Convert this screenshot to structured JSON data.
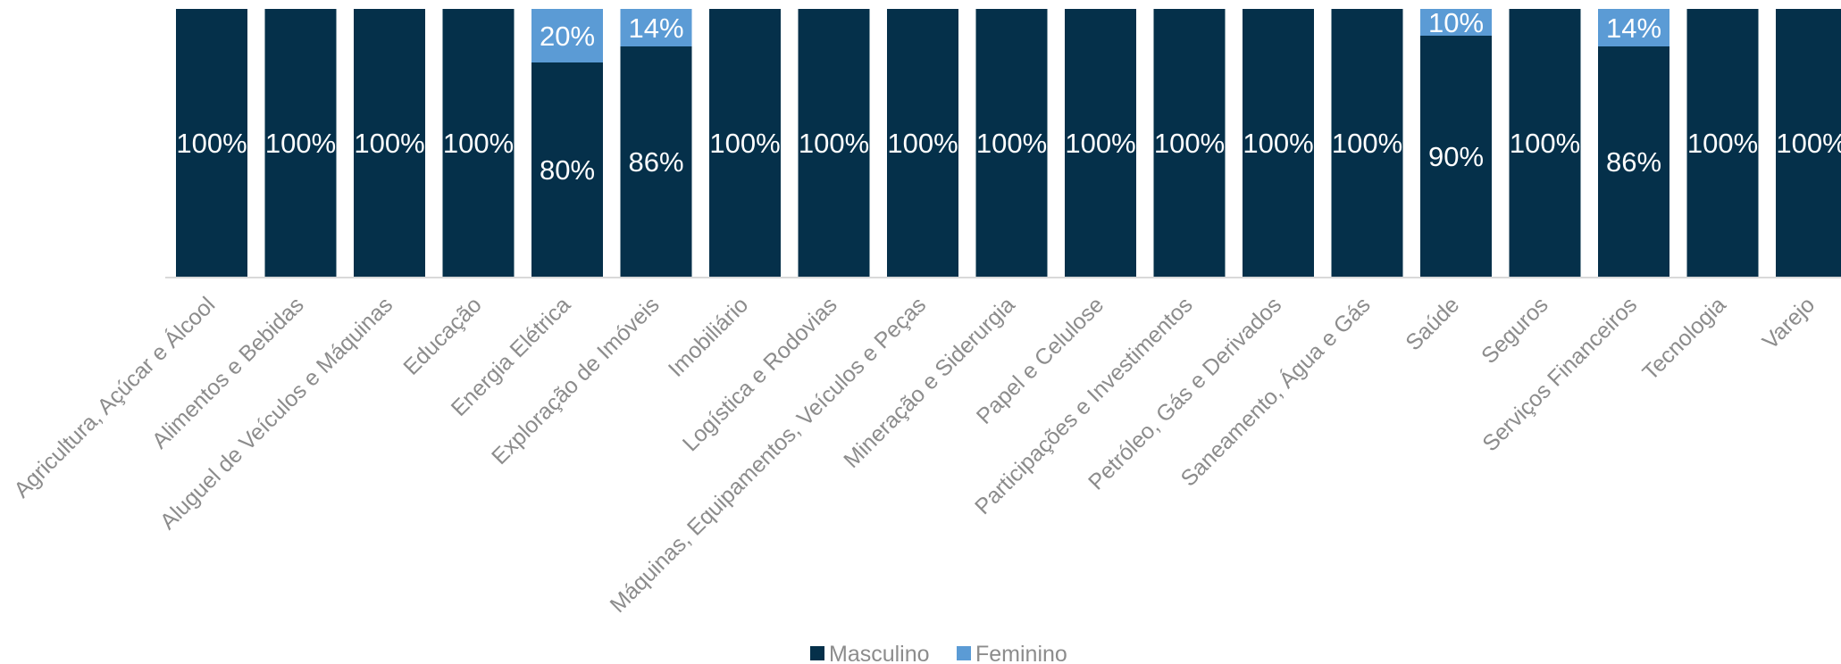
{
  "chart_data": {
    "type": "bar",
    "stacked": true,
    "percent_stacked": true,
    "categories": [
      "Agricultura, Açúcar e Álcool",
      "Alimentos e Bebidas",
      "Aluguel de Veículos e Máquinas",
      "Educação",
      "Energia Elétrica",
      "Exploração de Imóveis",
      "Imobiliário",
      "Logística e Rodovias",
      "Máquinas, Equipamentos, Veículos e Peças",
      "Mineração e Siderurgia",
      "Papel e Celulose",
      "Participações e Investimentos",
      "Petróleo, Gás e Derivados",
      "Saneamento, Água e Gás",
      "Saúde",
      "Seguros",
      "Serviços Financeiros",
      "Tecnologia",
      "Varejo"
    ],
    "series": [
      {
        "name": "Masculino",
        "color": "#05304a",
        "values": [
          100,
          100,
          100,
          100,
          80,
          86,
          100,
          100,
          100,
          100,
          100,
          100,
          100,
          100,
          90,
          100,
          86,
          100,
          100
        ],
        "labels": [
          "100%",
          "100%",
          "100%",
          "100%",
          "80%",
          "86%",
          "100%",
          "100%",
          "100%",
          "100%",
          "100%",
          "100%",
          "100%",
          "100%",
          "90%",
          "100%",
          "86%",
          "100%",
          "100%"
        ]
      },
      {
        "name": "Feminino",
        "color": "#5b9bd5",
        "values": [
          0,
          0,
          0,
          0,
          20,
          14,
          0,
          0,
          0,
          0,
          0,
          0,
          0,
          0,
          10,
          0,
          14,
          0,
          0
        ],
        "labels": [
          "",
          "",
          "",
          "",
          "20%",
          "14%",
          "",
          "",
          "",
          "",
          "",
          "",
          "",
          "",
          "10%",
          "",
          "14%",
          "",
          ""
        ]
      }
    ],
    "ylim": [
      0,
      100
    ],
    "grid": false,
    "legend": "bottom-center",
    "axis_color": "#d9d9d9",
    "label_color": "#ffffff",
    "category_label_color": "#8c8c8c"
  }
}
